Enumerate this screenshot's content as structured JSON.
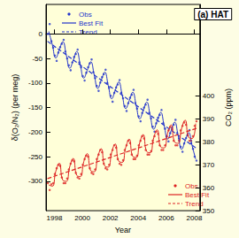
{
  "chart_data": {
    "type": "line",
    "title": "(a) HAT",
    "x_label": "Year",
    "y_label": "δ(O₂/N₂) (per meg)",
    "y2_label": "CO₂ (ppm)",
    "xlim": [
      1997.4,
      2008.4
    ],
    "xticks": [
      1998,
      2000,
      2002,
      2004,
      2006,
      2008
    ],
    "ylim": [
      -360,
      60
    ],
    "yticks": [
      -300,
      -250,
      -200,
      -150,
      -100,
      -50,
      0
    ],
    "y2lim": [
      350,
      440
    ],
    "y2ticks": [
      350,
      360,
      370,
      380,
      390,
      400
    ],
    "grid": false,
    "legend": "left",
    "series": [
      {
        "name": "Obs",
        "type": "scatter",
        "marker": "circle",
        "color": "#2233cc",
        "x": [
          1997.53,
          1997.66,
          1997.78,
          1997.91,
          1998.03,
          1998.16,
          1998.28,
          1998.41,
          1998.53,
          1998.66,
          1998.78,
          1998.91,
          1999.03,
          1999.16,
          1999.28,
          1999.41,
          1999.53,
          1999.66,
          1999.78,
          1999.91,
          2000.03,
          2000.16,
          2000.28,
          2000.41,
          2000.53,
          2000.66,
          2000.78,
          2000.91,
          2001.03,
          2001.16,
          2001.28,
          2001.41,
          2001.53,
          2001.66,
          2001.78,
          2001.91,
          2002.03,
          2002.16,
          2002.28,
          2002.41,
          2002.53,
          2002.66,
          2002.78,
          2002.91,
          2003.03,
          2003.16,
          2003.28,
          2003.41,
          2003.53,
          2003.66,
          2003.78,
          2003.91,
          2004.03,
          2004.16,
          2004.28,
          2004.41,
          2004.53,
          2004.66,
          2004.78,
          2004.91,
          2005.03,
          2005.16,
          2005.28,
          2005.41,
          2005.53,
          2005.66,
          2005.78,
          2005.91,
          2006.03,
          2006.16,
          2006.28,
          2006.41,
          2006.53,
          2006.66,
          2006.78,
          2006.91,
          2007.03,
          2007.16,
          2007.28,
          2007.41,
          2007.53,
          2007.66,
          2007.78,
          2007.91,
          2008.03,
          2008.16
        ],
        "values": [
          0,
          20,
          -15,
          -28,
          -44,
          -55,
          -38,
          -27,
          -20,
          -12,
          -36,
          -50,
          -64,
          -74,
          -58,
          -47,
          -41,
          -32,
          -58,
          -68,
          -86,
          -95,
          -79,
          -68,
          -60,
          -52,
          -78,
          -90,
          -106,
          -116,
          -99,
          -88,
          -82,
          -73,
          -100,
          -110,
          -126,
          -138,
          -120,
          -109,
          -103,
          -94,
          -120,
          -131,
          -147,
          -157,
          -141,
          -130,
          -124,
          -114,
          -141,
          -152,
          -168,
          -178,
          -161,
          -150,
          -144,
          -134,
          -161,
          -172,
          -189,
          -199,
          -182,
          -171,
          -165,
          -155,
          -182,
          -193,
          -209,
          -219,
          -202,
          -191,
          -185,
          -175,
          -202,
          -213,
          -230,
          -240,
          -223,
          -212,
          -206,
          -196,
          -223,
          -234,
          -250,
          -258
        ]
      },
      {
        "name": "Best Fit",
        "type": "line",
        "line_style": "solid",
        "color": "#2233cc",
        "x": [
          1997.6,
          1997.85,
          1998.1,
          1998.35,
          1998.6,
          1998.85,
          1999.1,
          1999.35,
          1999.6,
          1999.85,
          2000.1,
          2000.35,
          2000.6,
          2000.85,
          2001.1,
          2001.35,
          2001.6,
          2001.85,
          2002.1,
          2002.35,
          2002.6,
          2002.85,
          2003.1,
          2003.35,
          2003.6,
          2003.85,
          2004.1,
          2004.35,
          2004.6,
          2004.85,
          2005.1,
          2005.35,
          2005.6,
          2005.85,
          2006.1,
          2006.35,
          2006.6,
          2006.85,
          2007.1,
          2007.35,
          2007.6,
          2007.85,
          2008.1
        ],
        "values": [
          5,
          -22,
          -49,
          -32,
          -16,
          -43,
          -70,
          -53,
          -36,
          -63,
          -90,
          -74,
          -57,
          -84,
          -111,
          -94,
          -78,
          -105,
          -132,
          -115,
          -98,
          -125,
          -152,
          -136,
          -119,
          -146,
          -173,
          -156,
          -139,
          -166,
          -194,
          -177,
          -160,
          -187,
          -214,
          -197,
          -180,
          -207,
          -235,
          -218,
          -201,
          -228,
          -255
        ]
      },
      {
        "name": "Trend",
        "type": "line",
        "line_style": "dashed",
        "color": "#2233cc",
        "x": [
          1997.5,
          2003,
          2008.2
        ],
        "values": [
          -15,
          -128,
          -234
        ]
      },
      {
        "name": "Obs",
        "type": "scatter",
        "marker": "circle",
        "color": "#dd2222",
        "axis": "y2",
        "x": [
          1997.53,
          1997.66,
          1997.78,
          1997.91,
          1998.03,
          1998.16,
          1998.28,
          1998.41,
          1998.53,
          1998.66,
          1998.78,
          1998.91,
          1999.03,
          1999.16,
          1999.28,
          1999.41,
          1999.53,
          1999.66,
          1999.78,
          1999.91,
          2000.03,
          2000.16,
          2000.28,
          2000.41,
          2000.53,
          2000.66,
          2000.78,
          2000.91,
          2001.03,
          2001.16,
          2001.28,
          2001.41,
          2001.53,
          2001.66,
          2001.78,
          2001.91,
          2002.03,
          2002.16,
          2002.28,
          2002.41,
          2002.53,
          2002.66,
          2002.78,
          2002.91,
          2003.03,
          2003.16,
          2003.28,
          2003.41,
          2003.53,
          2003.66,
          2003.78,
          2003.91,
          2004.03,
          2004.16,
          2004.28,
          2004.41,
          2004.53,
          2004.66,
          2004.78,
          2004.91,
          2005.03,
          2005.16,
          2005.28,
          2005.41,
          2005.53,
          2005.66,
          2005.78,
          2005.91,
          2006.03,
          2006.16,
          2006.28,
          2006.41,
          2006.53,
          2006.66,
          2006.78,
          2006.91,
          2007.03,
          2007.16,
          2007.28,
          2007.41,
          2007.53,
          2007.66,
          2007.78,
          2007.91,
          2008.03,
          2008.16
        ],
        "values": [
          362,
          359,
          361.5,
          362,
          366,
          368.5,
          370,
          369.5,
          364.5,
          362,
          362,
          364,
          368,
          370.5,
          372,
          371.5,
          366.5,
          364.5,
          364,
          366,
          370,
          372.5,
          374,
          373.5,
          368.5,
          366.5,
          366,
          368,
          372.5,
          374.5,
          376.5,
          375.5,
          370.5,
          368.5,
          368,
          370,
          374.5,
          376.5,
          378.5,
          377.5,
          372.5,
          370.5,
          370,
          372,
          376.5,
          378.5,
          380.5,
          379.5,
          374.5,
          372.5,
          372.5,
          374,
          378.5,
          380.5,
          382.5,
          381.5,
          376.5,
          374.5,
          374.5,
          376,
          380.5,
          382.5,
          384.5,
          383.5,
          378.5,
          376.5,
          376.5,
          378.5,
          382.5,
          385,
          386.5,
          385.5,
          380.5,
          378.5,
          378.5,
          380.5,
          385,
          387,
          388.5,
          387.5,
          383,
          380.5,
          380.5,
          382.5,
          387,
          389
        ]
      },
      {
        "name": "Best Fit",
        "type": "line",
        "line_style": "solid",
        "color": "#dd2222",
        "axis": "y2",
        "x": [
          1997.6,
          1997.85,
          1998.1,
          1998.35,
          1998.6,
          1998.85,
          1999.1,
          1999.35,
          1999.6,
          1999.85,
          2000.1,
          2000.35,
          2000.6,
          2000.85,
          2001.1,
          2001.35,
          2001.6,
          2001.85,
          2002.1,
          2002.35,
          2002.6,
          2002.85,
          2003.1,
          2003.35,
          2003.6,
          2003.85,
          2004.1,
          2004.35,
          2004.6,
          2004.85,
          2005.1,
          2005.35,
          2005.6,
          2005.85,
          2006.1,
          2006.35,
          2006.6,
          2006.85,
          2007.1,
          2007.35,
          2007.6,
          2007.85,
          2008.1
        ],
        "values": [
          361.2,
          360.7,
          367.2,
          370.7,
          363.3,
          362.8,
          369.3,
          372.8,
          365.4,
          364.9,
          371.4,
          374.9,
          367.4,
          367.0,
          373.5,
          377.0,
          369.5,
          369.0,
          375.6,
          379.1,
          371.6,
          371.1,
          377.6,
          381.2,
          373.7,
          373.2,
          379.7,
          383.2,
          375.8,
          375.3,
          381.8,
          385.3,
          377.8,
          377.4,
          383.9,
          387.4,
          379.9,
          379.4,
          386.0,
          389.5,
          382.0,
          381.5,
          388.0
        ]
      },
      {
        "name": "Trend",
        "type": "line",
        "line_style": "dashed",
        "color": "#dd2222",
        "axis": "y2",
        "x": [
          1997.5,
          2003,
          2008.2
        ],
        "values": [
          364,
          375.3,
          386
        ]
      }
    ]
  }
}
